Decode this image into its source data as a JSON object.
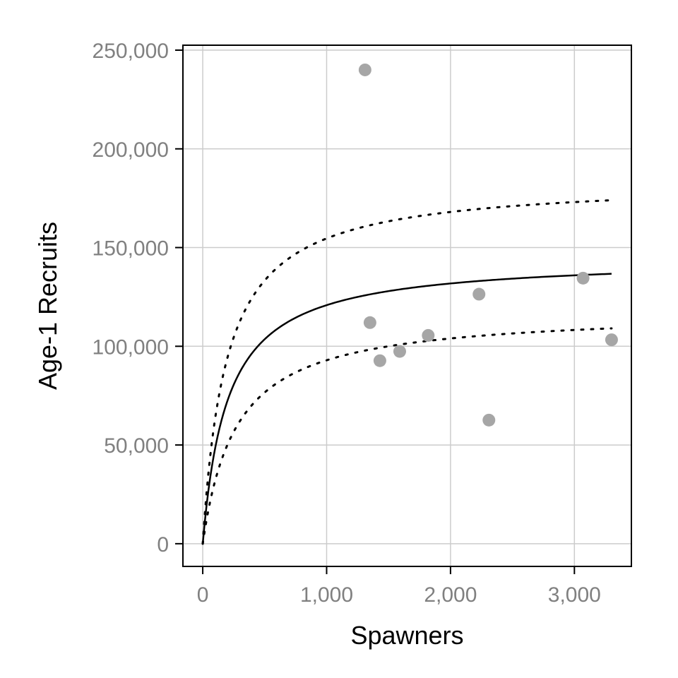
{
  "chart_data": {
    "type": "scatter",
    "xlabel": "Spawners",
    "ylabel": "Age-1 Recruits",
    "xlim": [
      -160,
      3460
    ],
    "ylim": [
      -11500,
      252500
    ],
    "x_ticks": [
      0,
      1000,
      2000,
      3000
    ],
    "x_tick_labels": [
      "0",
      "1,000",
      "2,000",
      "3,000"
    ],
    "y_ticks": [
      0,
      50000,
      100000,
      150000,
      200000,
      250000
    ],
    "y_tick_labels": [
      "0",
      "50,000",
      "100,000",
      "150,000",
      "200,000",
      "250,000"
    ],
    "grid": true,
    "legend": "none",
    "series": [
      {
        "kind": "points",
        "color": "#a6a6a6",
        "points": [
          {
            "x": 1310,
            "y": 240000
          },
          {
            "x": 1350,
            "y": 112000
          },
          {
            "x": 1430,
            "y": 92700
          },
          {
            "x": 1590,
            "y": 97400
          },
          {
            "x": 1820,
            "y": 105500
          },
          {
            "x": 2230,
            "y": 126400
          },
          {
            "x": 2310,
            "y": 62600
          },
          {
            "x": 3070,
            "y": 134500
          },
          {
            "x": 3300,
            "y": 103300
          }
        ]
      },
      {
        "kind": "line",
        "style": "solid",
        "color": "#000000",
        "model": "beverton-holt",
        "a": 145000,
        "b": 200,
        "x_range": [
          0,
          3300
        ]
      },
      {
        "kind": "line",
        "style": "dotted",
        "color": "#000000",
        "model": "beverton-holt",
        "a": 184000,
        "b": 190,
        "x_range": [
          0,
          3300
        ]
      },
      {
        "kind": "line",
        "style": "dotted",
        "color": "#000000",
        "model": "beverton-holt",
        "a": 118000,
        "b": 270,
        "x_range": [
          0,
          3300
        ]
      }
    ]
  }
}
